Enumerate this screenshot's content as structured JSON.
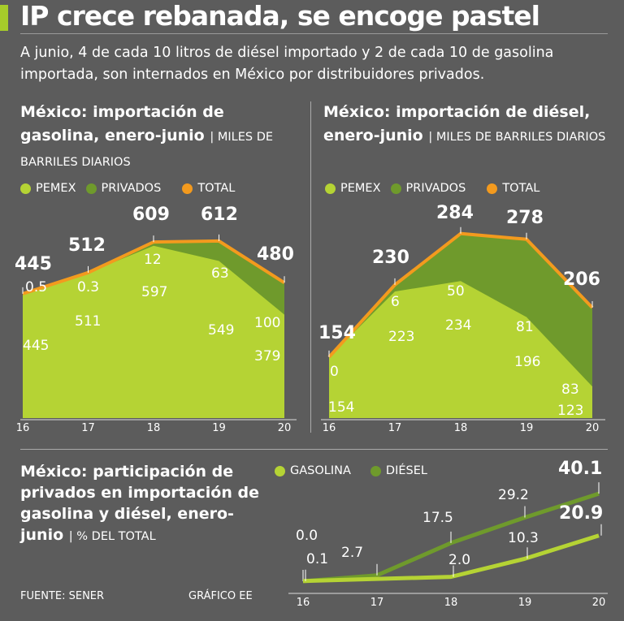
{
  "title": "IP crece rebanada, se encoge pastel",
  "subtitle": "A junio, 4 de cada 10 litros de diésel importado y 2 de cada 10 de gasolina importada, son internados en México por distribuidores privados.",
  "colors": {
    "pemex": "#b5d334",
    "privados": "#6f9a2c",
    "total": "#f39a1e",
    "background": "#5c5c5c"
  },
  "legend": {
    "pemex": "PEMEX",
    "privados": "PRIVADOS",
    "total": "TOTAL",
    "gasolina": "GASOLINA",
    "diesel": "DIÉSEL"
  },
  "source": "FUENTE: SENER",
  "credit": "GRÁFICO EE",
  "chart_data": [
    {
      "type": "area",
      "title": "México: importación de gasolina, enero-junio",
      "unit": "MILES DE BARRILES DIARIOS",
      "categories": [
        "16",
        "17",
        "18",
        "19",
        "20"
      ],
      "series": [
        {
          "name": "PEMEX",
          "values": [
            445,
            511,
            597,
            549,
            379
          ]
        },
        {
          "name": "PRIVADOS",
          "values": [
            0.5,
            0.3,
            12,
            63,
            100
          ]
        },
        {
          "name": "TOTAL",
          "values": [
            445,
            512,
            609,
            612,
            480
          ]
        }
      ]
    },
    {
      "type": "area",
      "title": "México: importación de diésel, enero-junio",
      "unit": "MILES DE BARRILES DIARIOS",
      "categories": [
        "16",
        "17",
        "18",
        "19",
        "20"
      ],
      "series": [
        {
          "name": "PEMEX",
          "values": [
            154,
            223,
            234,
            196,
            123
          ]
        },
        {
          "name": "PRIVADOS",
          "values": [
            0,
            6,
            50,
            81,
            83
          ]
        },
        {
          "name": "TOTAL",
          "values": [
            154,
            230,
            284,
            278,
            206
          ]
        }
      ]
    },
    {
      "type": "line",
      "title": "México: participación de privados en importación de gasolina y diésel, enero-junio",
      "unit": "% DEL TOTAL",
      "categories": [
        "16",
        "17",
        "18",
        "19",
        "20"
      ],
      "series": [
        {
          "name": "GASOLINA",
          "values": [
            0.1,
            null,
            2.0,
            10.3,
            20.9
          ]
        },
        {
          "name": "DIÉSEL",
          "values": [
            0.0,
            2.7,
            17.5,
            29.2,
            40.1
          ]
        }
      ]
    }
  ]
}
